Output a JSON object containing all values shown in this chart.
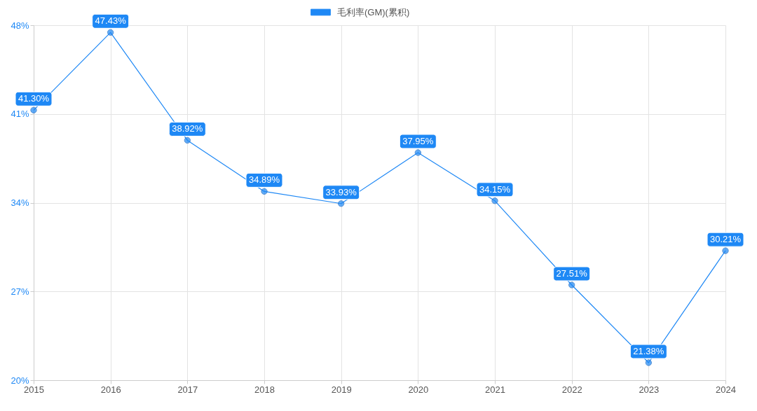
{
  "chart_data": {
    "type": "line",
    "categories": [
      "2015",
      "2016",
      "2017",
      "2018",
      "2019",
      "2020",
      "2021",
      "2022",
      "2023",
      "2024"
    ],
    "series": [
      {
        "name": "毛利率(GM)(累积)",
        "color": "#1e88f5",
        "values": [
          41.3,
          47.43,
          38.92,
          34.89,
          33.93,
          37.95,
          34.15,
          27.51,
          21.38,
          30.21
        ],
        "value_labels": [
          "41.30%",
          "47.43%",
          "38.92%",
          "34.89%",
          "33.93%",
          "37.95%",
          "34.15%",
          "27.51%",
          "21.38%",
          "30.21%"
        ]
      }
    ],
    "ylim": [
      20,
      48
    ],
    "yticks": [
      {
        "value": 20,
        "label": "20%"
      },
      {
        "value": 27,
        "label": "27%"
      },
      {
        "value": 34,
        "label": "34%"
      },
      {
        "value": 41,
        "label": "41%"
      },
      {
        "value": 48,
        "label": "48%"
      }
    ],
    "grid": true,
    "legend": "top",
    "marker": "circle",
    "line_style": "solid"
  }
}
